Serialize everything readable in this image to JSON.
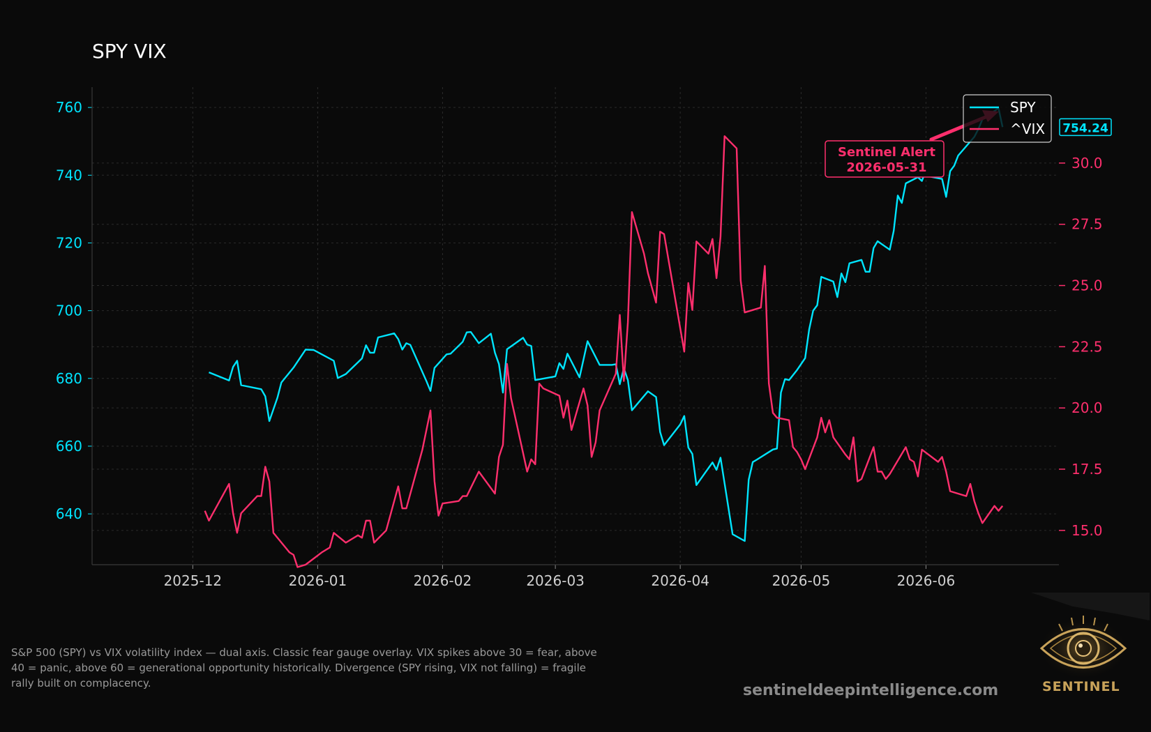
{
  "chart_data": {
    "type": "line",
    "title": "SPY VIX",
    "x_ticks": [
      "2025-12",
      "2026-01",
      "2026-02",
      "2026-03",
      "2026-04",
      "2026-05",
      "2026-06"
    ],
    "y_left": {
      "ticks": [
        640,
        660,
        680,
        700,
        720,
        740,
        760
      ],
      "range": [
        625,
        766
      ],
      "color": "#00e5ff"
    },
    "y_right": {
      "ticks": [
        "15.0",
        "17.5",
        "20.0",
        "22.5",
        "25.0",
        "27.5",
        "30.0"
      ],
      "range": [
        13.6,
        33.1
      ],
      "color": "#ff2f6d"
    },
    "grid": true,
    "legend_position": "top-right",
    "series": [
      {
        "name": "SPY",
        "axis": "left",
        "color": "#00e5ff",
        "points": [
          [
            "2025-12-05",
            681.8
          ],
          [
            "2025-12-10",
            679.4
          ],
          [
            "2025-12-11",
            683.4
          ],
          [
            "2025-12-12",
            685.2
          ],
          [
            "2025-12-13",
            678.0
          ],
          [
            "2025-12-18",
            676.8
          ],
          [
            "2025-12-19",
            674.7
          ],
          [
            "2025-12-20",
            667.4
          ],
          [
            "2025-12-22",
            674.3
          ],
          [
            "2025-12-23",
            678.8
          ],
          [
            "2025-12-26",
            683.2
          ],
          [
            "2025-12-29",
            688.5
          ],
          [
            "2025-12-31",
            688.4
          ],
          [
            "2026-01-05",
            685.2
          ],
          [
            "2026-01-06",
            680.1
          ],
          [
            "2026-01-08",
            681.3
          ],
          [
            "2026-01-12",
            685.9
          ],
          [
            "2026-01-13",
            689.8
          ],
          [
            "2026-01-14",
            687.6
          ],
          [
            "2026-01-15",
            687.6
          ],
          [
            "2026-01-16",
            692.1
          ],
          [
            "2026-01-20",
            693.3
          ],
          [
            "2026-01-21",
            691.6
          ],
          [
            "2026-01-22",
            688.5
          ],
          [
            "2026-01-23",
            690.4
          ],
          [
            "2026-01-24",
            689.9
          ],
          [
            "2026-01-28",
            679.2
          ],
          [
            "2026-01-29",
            676.3
          ],
          [
            "2026-01-30",
            683.1
          ],
          [
            "2026-02-02",
            687.1
          ],
          [
            "2026-02-03",
            687.3
          ],
          [
            "2026-02-06",
            690.8
          ],
          [
            "2026-02-07",
            693.6
          ],
          [
            "2026-02-08",
            693.7
          ],
          [
            "2026-02-10",
            690.4
          ],
          [
            "2026-02-13",
            693.2
          ],
          [
            "2026-02-14",
            687.6
          ],
          [
            "2026-02-15",
            684.2
          ],
          [
            "2026-02-16",
            675.8
          ],
          [
            "2026-02-17",
            688.6
          ],
          [
            "2026-02-21",
            692.0
          ],
          [
            "2026-02-22",
            690.0
          ],
          [
            "2026-02-23",
            689.6
          ],
          [
            "2026-02-24",
            679.5
          ],
          [
            "2026-03-01",
            680.6
          ],
          [
            "2026-03-02",
            684.5
          ],
          [
            "2026-03-03",
            682.8
          ],
          [
            "2026-03-04",
            687.3
          ],
          [
            "2026-03-07",
            680.3
          ],
          [
            "2026-03-09",
            691.0
          ],
          [
            "2026-03-12",
            684.0
          ],
          [
            "2026-03-15",
            684.0
          ],
          [
            "2026-03-16",
            684.2
          ],
          [
            "2026-03-17",
            678.3
          ],
          [
            "2026-03-18",
            683.0
          ],
          [
            "2026-03-19",
            679.5
          ],
          [
            "2026-03-20",
            670.6
          ],
          [
            "2026-03-24",
            676.2
          ],
          [
            "2026-03-26",
            674.5
          ],
          [
            "2026-03-27",
            664.2
          ],
          [
            "2026-03-28",
            660.3
          ],
          [
            "2026-04-01",
            666.4
          ],
          [
            "2026-04-02",
            668.9
          ],
          [
            "2026-04-03",
            659.6
          ],
          [
            "2026-04-04",
            657.7
          ],
          [
            "2026-04-05",
            648.5
          ],
          [
            "2026-04-09",
            655.2
          ],
          [
            "2026-04-10",
            653.0
          ],
          [
            "2026-04-11",
            656.6
          ],
          [
            "2026-04-14",
            634.0
          ],
          [
            "2026-04-17",
            632.0
          ],
          [
            "2026-04-18",
            650.1
          ],
          [
            "2026-04-19",
            655.3
          ],
          [
            "2026-04-20",
            656.0
          ],
          [
            "2026-04-24",
            659.0
          ],
          [
            "2026-04-25",
            659.3
          ],
          [
            "2026-04-26",
            675.8
          ],
          [
            "2026-04-27",
            679.8
          ],
          [
            "2026-04-28",
            679.5
          ],
          [
            "2026-04-30",
            682.5
          ],
          [
            "2026-05-02",
            686.0
          ],
          [
            "2026-05-03",
            694.5
          ],
          [
            "2026-05-04",
            700.0
          ],
          [
            "2026-05-05",
            701.6
          ],
          [
            "2026-05-06",
            710.0
          ],
          [
            "2026-05-09",
            708.6
          ],
          [
            "2026-05-10",
            704.0
          ],
          [
            "2026-05-11",
            711.0
          ],
          [
            "2026-05-12",
            708.4
          ],
          [
            "2026-05-13",
            714.0
          ],
          [
            "2026-05-16",
            715.0
          ],
          [
            "2026-05-17",
            711.5
          ],
          [
            "2026-05-18",
            711.5
          ],
          [
            "2026-05-19",
            718.5
          ],
          [
            "2026-05-20",
            720.5
          ],
          [
            "2026-05-23",
            718.0
          ],
          [
            "2026-05-24",
            723.6
          ],
          [
            "2026-05-25",
            734.0
          ],
          [
            "2026-05-26",
            731.8
          ],
          [
            "2026-05-27",
            737.6
          ],
          [
            "2026-05-30",
            739.4
          ],
          [
            "2026-05-31",
            738.3
          ],
          [
            "2026-06-01",
            741.6
          ],
          [
            "2026-06-02",
            739.6
          ],
          [
            "2026-06-05",
            738.9
          ],
          [
            "2026-06-06",
            733.6
          ],
          [
            "2026-06-07",
            741.2
          ],
          [
            "2026-06-08",
            742.8
          ],
          [
            "2026-06-09",
            745.8
          ],
          [
            "2026-06-13",
            751.3
          ],
          [
            "2026-06-14",
            753.6
          ],
          [
            "2026-06-15",
            756.5
          ],
          [
            "2026-06-19",
            759.8
          ],
          [
            "2026-06-20",
            754.2
          ]
        ]
      },
      {
        "name": "^VIX",
        "axis": "right",
        "color": "#ff2f6d",
        "points": [
          [
            "2025-12-04",
            15.8
          ],
          [
            "2025-12-05",
            15.4
          ],
          [
            "2025-12-08",
            16.3
          ],
          [
            "2025-12-10",
            16.9
          ],
          [
            "2025-12-11",
            15.7
          ],
          [
            "2025-12-12",
            14.9
          ],
          [
            "2025-12-13",
            15.7
          ],
          [
            "2025-12-17",
            16.4
          ],
          [
            "2025-12-18",
            16.4
          ],
          [
            "2025-12-19",
            17.6
          ],
          [
            "2025-12-20",
            17.0
          ],
          [
            "2025-12-21",
            14.9
          ],
          [
            "2025-12-25",
            14.1
          ],
          [
            "2025-12-26",
            14.0
          ],
          [
            "2025-12-27",
            13.5
          ],
          [
            "2025-12-29",
            13.6
          ],
          [
            "2026-01-02",
            14.1
          ],
          [
            "2026-01-04",
            14.3
          ],
          [
            "2026-01-05",
            14.9
          ],
          [
            "2026-01-08",
            14.5
          ],
          [
            "2026-01-11",
            14.8
          ],
          [
            "2026-01-12",
            14.7
          ],
          [
            "2026-01-13",
            15.4
          ],
          [
            "2026-01-14",
            15.4
          ],
          [
            "2026-01-15",
            14.5
          ],
          [
            "2026-01-18",
            15.0
          ],
          [
            "2026-01-21",
            16.8
          ],
          [
            "2026-01-22",
            15.9
          ],
          [
            "2026-01-23",
            15.9
          ],
          [
            "2026-01-27",
            18.3
          ],
          [
            "2026-01-29",
            19.9
          ],
          [
            "2026-01-30",
            17.0
          ],
          [
            "2026-01-31",
            15.6
          ],
          [
            "2026-02-01",
            16.1
          ],
          [
            "2026-02-05",
            16.2
          ],
          [
            "2026-02-06",
            16.4
          ],
          [
            "2026-02-07",
            16.4
          ],
          [
            "2026-02-10",
            17.4
          ],
          [
            "2026-02-14",
            16.5
          ],
          [
            "2026-02-15",
            18.0
          ],
          [
            "2026-02-16",
            18.5
          ],
          [
            "2026-02-17",
            21.8
          ],
          [
            "2026-02-18",
            20.4
          ],
          [
            "2026-02-22",
            17.4
          ],
          [
            "2026-02-23",
            17.9
          ],
          [
            "2026-02-24",
            17.7
          ],
          [
            "2026-02-25",
            21.0
          ],
          [
            "2026-02-26",
            20.8
          ],
          [
            "2026-03-02",
            20.5
          ],
          [
            "2026-03-03",
            19.6
          ],
          [
            "2026-03-04",
            20.3
          ],
          [
            "2026-03-05",
            19.1
          ],
          [
            "2026-03-08",
            20.8
          ],
          [
            "2026-03-09",
            20.1
          ],
          [
            "2026-03-10",
            18.0
          ],
          [
            "2026-03-11",
            18.6
          ],
          [
            "2026-03-12",
            19.9
          ],
          [
            "2026-03-16",
            21.4
          ],
          [
            "2026-03-17",
            23.8
          ],
          [
            "2026-03-18",
            21.1
          ],
          [
            "2026-03-19",
            23.5
          ],
          [
            "2026-03-20",
            28.0
          ],
          [
            "2026-03-23",
            26.3
          ],
          [
            "2026-03-24",
            25.5
          ],
          [
            "2026-03-26",
            24.3
          ],
          [
            "2026-03-27",
            27.2
          ],
          [
            "2026-03-28",
            27.1
          ],
          [
            "2026-04-02",
            22.3
          ],
          [
            "2026-04-03",
            25.1
          ],
          [
            "2026-04-04",
            24.0
          ],
          [
            "2026-04-05",
            26.8
          ],
          [
            "2026-04-08",
            26.3
          ],
          [
            "2026-04-09",
            26.9
          ],
          [
            "2026-04-10",
            25.3
          ],
          [
            "2026-04-11",
            27.0
          ],
          [
            "2026-04-12",
            31.1
          ],
          [
            "2026-04-15",
            30.6
          ],
          [
            "2026-04-16",
            25.2
          ],
          [
            "2026-04-17",
            23.9
          ],
          [
            "2026-04-21",
            24.1
          ],
          [
            "2026-04-22",
            25.8
          ],
          [
            "2026-04-23",
            21.0
          ],
          [
            "2026-04-24",
            19.8
          ],
          [
            "2026-04-25",
            19.6
          ],
          [
            "2026-04-28",
            19.5
          ],
          [
            "2026-04-29",
            18.4
          ],
          [
            "2026-04-30",
            18.2
          ],
          [
            "2026-05-01",
            17.9
          ],
          [
            "2026-05-02",
            17.5
          ],
          [
            "2026-05-05",
            18.8
          ],
          [
            "2026-05-06",
            19.6
          ],
          [
            "2026-05-07",
            19.0
          ],
          [
            "2026-05-08",
            19.5
          ],
          [
            "2026-05-09",
            18.8
          ],
          [
            "2026-05-12",
            18.1
          ],
          [
            "2026-05-13",
            17.9
          ],
          [
            "2026-05-14",
            18.8
          ],
          [
            "2026-05-15",
            17.0
          ],
          [
            "2026-05-16",
            17.1
          ],
          [
            "2026-05-19",
            18.4
          ],
          [
            "2026-05-20",
            17.4
          ],
          [
            "2026-05-21",
            17.4
          ],
          [
            "2026-05-22",
            17.1
          ],
          [
            "2026-05-23",
            17.3
          ],
          [
            "2026-05-27",
            18.4
          ],
          [
            "2026-05-28",
            17.9
          ],
          [
            "2026-05-29",
            17.8
          ],
          [
            "2026-05-30",
            17.2
          ],
          [
            "2026-05-31",
            18.3
          ],
          [
            "2026-06-04",
            17.8
          ],
          [
            "2026-06-05",
            18.0
          ],
          [
            "2026-06-06",
            17.4
          ],
          [
            "2026-06-07",
            16.6
          ],
          [
            "2026-06-11",
            16.4
          ],
          [
            "2026-06-12",
            16.9
          ],
          [
            "2026-06-13",
            16.2
          ],
          [
            "2026-06-14",
            15.7
          ],
          [
            "2026-06-15",
            15.3
          ],
          [
            "2026-06-18",
            16.0
          ],
          [
            "2026-06-19",
            15.8
          ],
          [
            "2026-06-20",
            16.0
          ]
        ]
      }
    ],
    "last_value_badge": {
      "text": "754.24",
      "series": "SPY"
    },
    "annotation": {
      "line1": "Sentinel Alert",
      "line2": "2026-05-31",
      "color": "#ff2f6d"
    }
  },
  "caption": "S&P 500 (SPY) vs VIX volatility index — dual axis. Classic fear gauge overlay. VIX spikes above 30 = fear, above 40 = panic, above 60 = generational opportunity historically. Divergence (SPY rising, VIX not falling) = fragile rally built on complacency.",
  "footer": {
    "url": "sentineldeepintelligence.com",
    "logo_text": "SENTINEL"
  }
}
